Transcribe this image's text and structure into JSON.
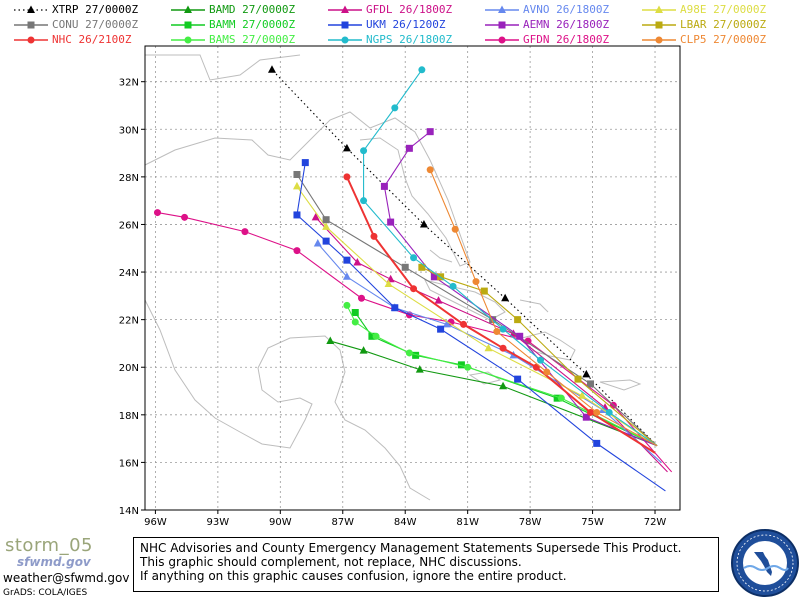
{
  "legend": [
    {
      "name": "XTRP",
      "time": "27/0000Z",
      "color": "#000000",
      "marker": "triangle",
      "dotted": true
    },
    {
      "name": "BAMD",
      "time": "27/0000Z",
      "color": "#119911",
      "marker": "triangle"
    },
    {
      "name": "GFDL",
      "time": "26/1800Z",
      "color": "#cc1188",
      "marker": "triangle"
    },
    {
      "name": "AVNO",
      "time": "26/1800Z",
      "color": "#6688ee",
      "marker": "triangle"
    },
    {
      "name": "A98E",
      "time": "27/0000Z",
      "color": "#dddd44",
      "marker": "triangle"
    },
    {
      "name": "CONU",
      "time": "27/0000Z",
      "color": "#777777",
      "marker": "square"
    },
    {
      "name": "BAMM",
      "time": "27/0000Z",
      "color": "#11cc22",
      "marker": "square"
    },
    {
      "name": "UKM",
      "time": "26/1200Z",
      "color": "#2244dd",
      "marker": "square"
    },
    {
      "name": "AEMN",
      "time": "26/1800Z",
      "color": "#9922bb",
      "marker": "square"
    },
    {
      "name": "LBAR",
      "time": "27/0000Z",
      "color": "#bbaa11",
      "marker": "square"
    },
    {
      "name": "NHC",
      "time": "26/2100Z",
      "color": "#ee3333",
      "marker": "circle"
    },
    {
      "name": "BAMS",
      "time": "27/0000Z",
      "color": "#44ee44",
      "marker": "circle"
    },
    {
      "name": "NGPS",
      "time": "26/1800Z",
      "color": "#22bbcc",
      "marker": "circle"
    },
    {
      "name": "GFDN",
      "time": "26/1800Z",
      "color": "#dd1188",
      "marker": "circle"
    },
    {
      "name": "CLP5",
      "time": "27/0000Z",
      "color": "#ee8833",
      "marker": "circle"
    }
  ],
  "axes": {
    "x_ticks": [
      "96W",
      "93W",
      "90W",
      "87W",
      "84W",
      "81W",
      "78W",
      "75W",
      "72W"
    ],
    "y_ticks": [
      "32N",
      "30N",
      "28N",
      "26N",
      "24N",
      "22N",
      "20N",
      "18N",
      "16N",
      "14N"
    ],
    "lon_range": [
      -96.5,
      -70.8
    ],
    "lat_range": [
      14,
      33.5
    ]
  },
  "tracks": [
    {
      "model": "XTRP",
      "points": [
        [
          -71.9,
          16.7
        ],
        [
          -75.3,
          19.7
        ],
        [
          -79.2,
          22.9
        ],
        [
          -83.1,
          26.0
        ],
        [
          -86.8,
          29.2
        ],
        [
          -90.4,
          32.5
        ]
      ]
    },
    {
      "model": "BAMD",
      "points": [
        [
          -71.9,
          16.7
        ],
        [
          -79.3,
          19.2
        ],
        [
          -83.3,
          19.9
        ],
        [
          -86.0,
          20.7
        ],
        [
          -87.6,
          21.1
        ]
      ]
    },
    {
      "model": "BAMM",
      "points": [
        [
          -71.9,
          16.7
        ],
        [
          -76.7,
          18.7
        ],
        [
          -81.3,
          20.1
        ],
        [
          -83.5,
          20.5
        ],
        [
          -85.6,
          21.3
        ],
        [
          -86.4,
          22.3
        ]
      ]
    },
    {
      "model": "BAMS",
      "points": [
        [
          -71.9,
          16.7
        ],
        [
          -76.5,
          18.7
        ],
        [
          -81.0,
          20.0
        ],
        [
          -83.8,
          20.6
        ],
        [
          -85.4,
          21.3
        ],
        [
          -86.4,
          21.9
        ],
        [
          -86.8,
          22.6
        ]
      ]
    },
    {
      "model": "GFDL",
      "points": [
        [
          -71.4,
          15.6
        ],
        [
          -74.4,
          18.3
        ],
        [
          -78.8,
          21.4
        ],
        [
          -82.4,
          22.8
        ],
        [
          -84.7,
          23.7
        ],
        [
          -86.3,
          24.4
        ],
        [
          -88.3,
          26.3
        ]
      ]
    },
    {
      "model": "GFDN",
      "points": [
        [
          -71.2,
          15.6
        ],
        [
          -74.0,
          18.4
        ],
        [
          -78.1,
          21.1
        ],
        [
          -81.8,
          21.9
        ],
        [
          -83.8,
          22.2
        ],
        [
          -86.1,
          22.9
        ],
        [
          -89.2,
          24.9
        ],
        [
          -91.7,
          25.7
        ],
        [
          -94.6,
          26.3
        ],
        [
          -95.9,
          26.5
        ]
      ]
    },
    {
      "model": "AVNO",
      "points": [
        [
          -71.7,
          16.0
        ],
        [
          -74.5,
          18.2
        ],
        [
          -78.8,
          20.5
        ],
        [
          -82.0,
          21.8
        ],
        [
          -84.5,
          22.5
        ],
        [
          -86.8,
          23.8
        ],
        [
          -88.2,
          25.2
        ]
      ]
    },
    {
      "model": "A98E",
      "points": [
        [
          -71.9,
          16.7
        ],
        [
          -75.5,
          18.8
        ],
        [
          -80.0,
          20.8
        ],
        [
          -84.8,
          23.5
        ],
        [
          -87.8,
          25.9
        ],
        [
          -89.2,
          27.6
        ]
      ]
    },
    {
      "model": "CONU",
      "points": [
        [
          -71.9,
          16.7
        ],
        [
          -75.1,
          19.3
        ],
        [
          -79.8,
          22.0
        ],
        [
          -84.0,
          24.2
        ],
        [
          -87.8,
          26.2
        ],
        [
          -89.2,
          28.1
        ]
      ]
    },
    {
      "model": "UKM",
      "points": [
        [
          -71.5,
          14.8
        ],
        [
          -74.8,
          16.8
        ],
        [
          -78.6,
          19.5
        ],
        [
          -82.3,
          21.6
        ],
        [
          -84.5,
          22.5
        ],
        [
          -86.8,
          24.5
        ],
        [
          -87.8,
          25.3
        ],
        [
          -89.2,
          26.4
        ],
        [
          -88.8,
          28.6
        ]
      ]
    },
    {
      "model": "AEMN",
      "points": [
        [
          -71.9,
          16.7
        ],
        [
          -75.3,
          17.9
        ],
        [
          -78.5,
          21.3
        ],
        [
          -82.6,
          23.8
        ],
        [
          -84.7,
          26.1
        ],
        [
          -85.0,
          27.6
        ],
        [
          -83.8,
          29.2
        ],
        [
          -82.8,
          29.9
        ]
      ]
    },
    {
      "model": "LBAR",
      "points": [
        [
          -71.9,
          16.7
        ],
        [
          -75.7,
          19.5
        ],
        [
          -78.6,
          22.0
        ],
        [
          -80.2,
          23.2
        ],
        [
          -82.3,
          23.8
        ],
        [
          -83.2,
          24.2
        ]
      ]
    },
    {
      "model": "NHC",
      "points": [
        [
          -72.0,
          16.4
        ],
        [
          -75.1,
          18.1
        ],
        [
          -77.7,
          20.0
        ],
        [
          -79.3,
          20.8
        ],
        [
          -81.2,
          21.8
        ],
        [
          -83.6,
          23.3
        ],
        [
          -85.5,
          25.5
        ],
        [
          -86.8,
          28.0
        ]
      ]
    },
    {
      "model": "NGPS",
      "points": [
        [
          -71.9,
          16.7
        ],
        [
          -74.2,
          18.1
        ],
        [
          -77.5,
          20.3
        ],
        [
          -79.3,
          21.6
        ],
        [
          -81.7,
          23.4
        ],
        [
          -83.6,
          24.6
        ],
        [
          -86.0,
          27.0
        ],
        [
          -86.0,
          29.1
        ],
        [
          -84.5,
          30.9
        ],
        [
          -83.2,
          32.5
        ]
      ]
    },
    {
      "model": "CLP5",
      "points": [
        [
          -71.9,
          16.7
        ],
        [
          -74.8,
          18.1
        ],
        [
          -77.2,
          19.8
        ],
        [
          -79.6,
          21.5
        ],
        [
          -80.6,
          23.6
        ],
        [
          -81.6,
          25.8
        ],
        [
          -82.8,
          28.3
        ]
      ]
    }
  ],
  "footer": {
    "brand_title": "storm_05",
    "brand_sub": "sfwmd.gov",
    "email": "weather@sfwmd.gov",
    "grads": "GrADS: COLA/IGES",
    "disclaimer": [
      "NHC Advisories and County Emergency Management Statements Supersede This Product.",
      "This graphic should complement, not replace, NHC discussions.",
      "If anything on this graphic causes confusion, ignore the entire product."
    ],
    "seal_text": "SOUTH FLORIDA WATER MANAGEMENT DISTRICT"
  }
}
